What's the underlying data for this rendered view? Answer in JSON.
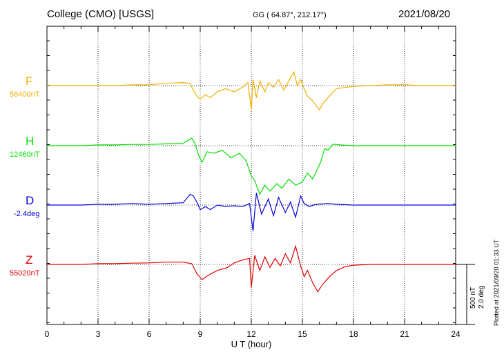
{
  "header": {
    "title": "College (CMO)  [USGS]",
    "coords": "GG ( 64.87°, 212.17°)",
    "date": "2021/08/20"
  },
  "side_notes": {
    "plotted": "Plotted at 2021/09/20 01:33 UT",
    "scale_nt": "500 nT",
    "scale_deg": "2.0 deg"
  },
  "colors": {
    "F": "#f0b000",
    "H": "#00e000",
    "D": "#0000e0",
    "Z": "#e00000"
  },
  "chart_data": {
    "type": "line",
    "xlabel": "U T (hour)",
    "xlim": [
      0,
      24
    ],
    "xticks": [
      0,
      3,
      6,
      9,
      12,
      15,
      18,
      21,
      24
    ],
    "grid": true,
    "series": [
      {
        "name": "F",
        "baseline": "56400nT",
        "color": "#f0b000",
        "points": [
          [
            0,
            0
          ],
          [
            1,
            0
          ],
          [
            2,
            0
          ],
          [
            3,
            0
          ],
          [
            4,
            0
          ],
          [
            5,
            5
          ],
          [
            6,
            5
          ],
          [
            7,
            15
          ],
          [
            8,
            20
          ],
          [
            8.4,
            15
          ],
          [
            8.6,
            -30
          ],
          [
            8.8,
            -70
          ],
          [
            9,
            -90
          ],
          [
            9.3,
            -60
          ],
          [
            9.6,
            -80
          ],
          [
            10,
            -40
          ],
          [
            10.5,
            -20
          ],
          [
            11,
            -40
          ],
          [
            11.5,
            -10
          ],
          [
            11.8,
            20
          ],
          [
            12,
            -160
          ],
          [
            12.1,
            40
          ],
          [
            12.3,
            -80
          ],
          [
            12.5,
            30
          ],
          [
            12.8,
            -40
          ],
          [
            13,
            20
          ],
          [
            13.3,
            -10
          ],
          [
            13.6,
            40
          ],
          [
            13.9,
            -30
          ],
          [
            14.2,
            30
          ],
          [
            14.5,
            90
          ],
          [
            14.7,
            0
          ],
          [
            14.9,
            40
          ],
          [
            15.1,
            -20
          ],
          [
            15.3,
            -70
          ],
          [
            15.6,
            -100
          ],
          [
            15.8,
            -130
          ],
          [
            16,
            -160
          ],
          [
            16.2,
            -120
          ],
          [
            16.5,
            -80
          ],
          [
            17,
            -20
          ],
          [
            18,
            -5
          ],
          [
            19,
            0
          ],
          [
            20,
            5
          ],
          [
            21,
            5
          ],
          [
            22,
            0
          ],
          [
            23,
            0
          ],
          [
            24,
            0
          ]
        ]
      },
      {
        "name": "H",
        "baseline": "12460nT",
        "color": "#00e000",
        "points": [
          [
            0,
            0
          ],
          [
            1,
            0
          ],
          [
            2,
            0
          ],
          [
            3,
            5
          ],
          [
            4,
            5
          ],
          [
            5,
            8
          ],
          [
            6,
            8
          ],
          [
            7,
            12
          ],
          [
            8,
            15
          ],
          [
            8.5,
            50
          ],
          [
            8.7,
            10
          ],
          [
            8.9,
            -60
          ],
          [
            9.1,
            -110
          ],
          [
            9.4,
            -40
          ],
          [
            9.8,
            -50
          ],
          [
            10.3,
            -30
          ],
          [
            10.8,
            -80
          ],
          [
            11.3,
            -50
          ],
          [
            11.7,
            -100
          ],
          [
            12,
            -200
          ],
          [
            12.2,
            -230
          ],
          [
            12.5,
            -320
          ],
          [
            12.8,
            -260
          ],
          [
            13.1,
            -300
          ],
          [
            13.5,
            -250
          ],
          [
            13.8,
            -280
          ],
          [
            14.2,
            -220
          ],
          [
            14.6,
            -260
          ],
          [
            15,
            -240
          ],
          [
            15.3,
            -180
          ],
          [
            15.6,
            -220
          ],
          [
            15.9,
            -150
          ],
          [
            16.1,
            -100
          ],
          [
            16.3,
            -20
          ],
          [
            16.5,
            -30
          ],
          [
            16.8,
            10
          ],
          [
            17.2,
            5
          ],
          [
            18,
            0
          ],
          [
            19,
            0
          ],
          [
            20,
            0
          ],
          [
            21,
            0
          ],
          [
            22,
            0
          ],
          [
            23,
            0
          ],
          [
            24,
            0
          ]
        ]
      },
      {
        "name": "D",
        "baseline": "-2.4deg",
        "color": "#0000e0",
        "points": [
          [
            0,
            0
          ],
          [
            1,
            0
          ],
          [
            2,
            0
          ],
          [
            3,
            5
          ],
          [
            4,
            5
          ],
          [
            5,
            10
          ],
          [
            6,
            5
          ],
          [
            7,
            10
          ],
          [
            8,
            15
          ],
          [
            8.4,
            70
          ],
          [
            8.6,
            60
          ],
          [
            8.8,
            20
          ],
          [
            9,
            -30
          ],
          [
            9.3,
            -10
          ],
          [
            9.6,
            -30
          ],
          [
            10,
            0
          ],
          [
            10.5,
            -10
          ],
          [
            11,
            -5
          ],
          [
            11.5,
            -10
          ],
          [
            11.9,
            10
          ],
          [
            12.1,
            -170
          ],
          [
            12.3,
            80
          ],
          [
            12.6,
            -60
          ],
          [
            13,
            40
          ],
          [
            13.3,
            -70
          ],
          [
            13.6,
            50
          ],
          [
            14,
            -50
          ],
          [
            14.3,
            20
          ],
          [
            14.6,
            -80
          ],
          [
            14.9,
            60
          ],
          [
            15.1,
            10
          ],
          [
            15.4,
            -10
          ],
          [
            15.8,
            5
          ],
          [
            16.5,
            10
          ],
          [
            17,
            5
          ],
          [
            18,
            0
          ],
          [
            19,
            0
          ],
          [
            20,
            0
          ],
          [
            21,
            0
          ],
          [
            22,
            0
          ],
          [
            23,
            0
          ],
          [
            24,
            0
          ]
        ]
      },
      {
        "name": "Z",
        "baseline": "55020nT",
        "color": "#e00000",
        "points": [
          [
            0,
            0
          ],
          [
            1,
            0
          ],
          [
            2,
            0
          ],
          [
            3,
            5
          ],
          [
            4,
            5
          ],
          [
            5,
            8
          ],
          [
            6,
            10
          ],
          [
            7,
            15
          ],
          [
            8,
            15
          ],
          [
            8.5,
            5
          ],
          [
            8.8,
            -60
          ],
          [
            9.1,
            -100
          ],
          [
            9.5,
            -70
          ],
          [
            10,
            -40
          ],
          [
            10.6,
            -20
          ],
          [
            11,
            10
          ],
          [
            11.5,
            30
          ],
          [
            11.9,
            40
          ],
          [
            12,
            -150
          ],
          [
            12.2,
            60
          ],
          [
            12.5,
            -40
          ],
          [
            12.8,
            50
          ],
          [
            13.1,
            -20
          ],
          [
            13.4,
            40
          ],
          [
            13.7,
            -10
          ],
          [
            14,
            70
          ],
          [
            14.3,
            10
          ],
          [
            14.6,
            120
          ],
          [
            14.9,
            -10
          ],
          [
            15.1,
            -80
          ],
          [
            15.3,
            -40
          ],
          [
            15.6,
            -120
          ],
          [
            15.9,
            -180
          ],
          [
            16.2,
            -130
          ],
          [
            16.6,
            -80
          ],
          [
            17,
            -40
          ],
          [
            17.5,
            -15
          ],
          [
            18,
            -5
          ],
          [
            19,
            0
          ],
          [
            20,
            0
          ],
          [
            21,
            0
          ],
          [
            22,
            0
          ],
          [
            23,
            0
          ],
          [
            24,
            0
          ]
        ]
      }
    ]
  }
}
